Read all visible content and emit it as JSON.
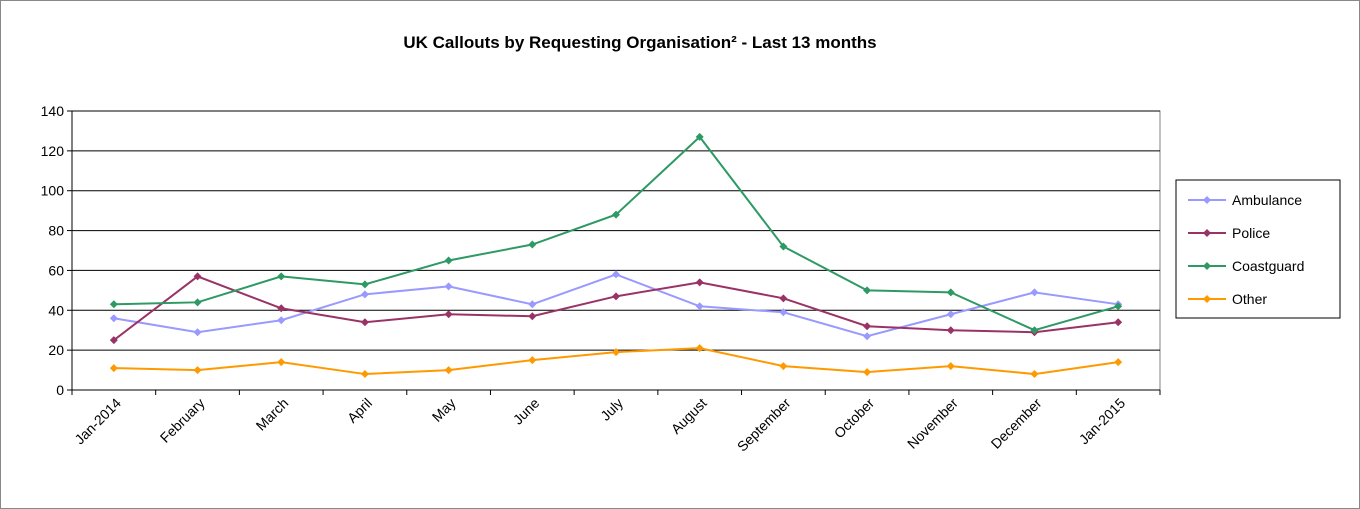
{
  "chart_data": {
    "type": "line",
    "title": "UK Callouts by Requesting Organisation² - Last 13 months",
    "categories": [
      "Jan-2014",
      "February",
      "March",
      "April",
      "May",
      "June",
      "July",
      "August",
      "September",
      "October",
      "November",
      "December",
      "Jan-2015"
    ],
    "series": [
      {
        "name": "Ambulance",
        "color": "#9999ff",
        "values": [
          36,
          29,
          35,
          48,
          52,
          43,
          58,
          42,
          39,
          27,
          38,
          49,
          43
        ]
      },
      {
        "name": "Police",
        "color": "#993366",
        "values": [
          25,
          57,
          41,
          34,
          38,
          37,
          47,
          54,
          46,
          32,
          30,
          29,
          34
        ]
      },
      {
        "name": "Coastguard",
        "color": "#2e9964",
        "values": [
          43,
          44,
          57,
          53,
          65,
          73,
          88,
          127,
          72,
          50,
          49,
          30,
          42
        ]
      },
      {
        "name": "Other",
        "color": "#ff9900",
        "values": [
          11,
          10,
          14,
          8,
          10,
          15,
          19,
          21,
          12,
          9,
          12,
          8,
          14
        ]
      }
    ],
    "ylim": [
      0,
      140
    ],
    "yticks": [
      0,
      20,
      40,
      60,
      80,
      100,
      120,
      140
    ],
    "grid": true,
    "legend": "right"
  }
}
